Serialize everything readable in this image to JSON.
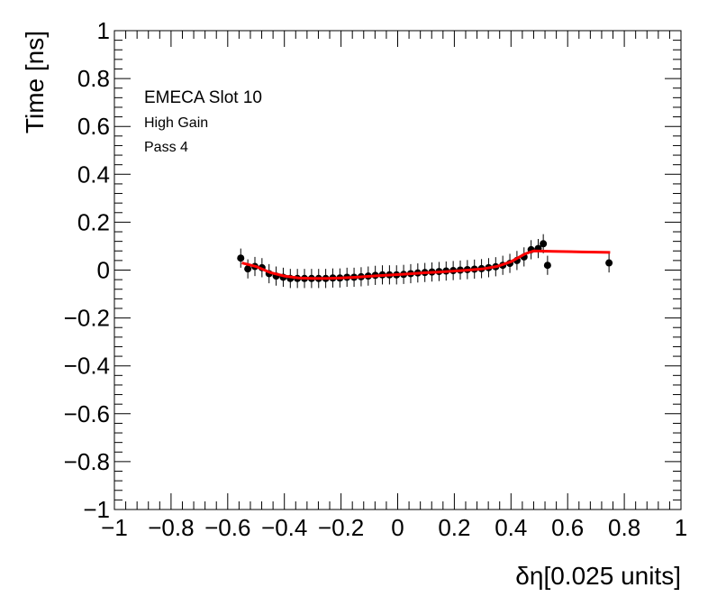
{
  "chart_data": {
    "type": "scatter",
    "xlabel": "δη[0.025 units]",
    "ylabel": "Time [ns]",
    "xlim": [
      -1,
      1
    ],
    "ylim": [
      -1,
      1
    ],
    "x_ticks": [
      "−1",
      "−0.8",
      "−0.6",
      "−0.4",
      "−0.2",
      "0",
      "0.2",
      "0.4",
      "0.6",
      "0.8",
      "1"
    ],
    "y_ticks": [
      "−1",
      "−0.8",
      "−0.6",
      "−0.4",
      "−0.2",
      "0",
      "0.2",
      "0.4",
      "0.6",
      "0.8",
      "1"
    ],
    "annotations": [
      "EMECA Slot 10",
      "High Gain",
      "Pass 4"
    ],
    "grid": false,
    "colors": {
      "points": "#000000",
      "fit": "#ff0000"
    },
    "series": [
      {
        "kind": "points-with-errors",
        "x": [
          -0.554,
          -0.529,
          -0.504,
          -0.479,
          -0.454,
          -0.429,
          -0.404,
          -0.379,
          -0.354,
          -0.329,
          -0.304,
          -0.279,
          -0.254,
          -0.229,
          -0.204,
          -0.179,
          -0.154,
          -0.129,
          -0.104,
          -0.079,
          -0.054,
          -0.029,
          -0.004,
          0.021,
          0.046,
          0.071,
          0.096,
          0.121,
          0.146,
          0.171,
          0.196,
          0.221,
          0.246,
          0.271,
          0.296,
          0.321,
          0.346,
          0.371,
          0.396,
          0.421,
          0.446,
          0.471,
          0.496,
          0.514,
          0.529,
          0.746
        ],
        "y": [
          0.05,
          0.005,
          0.015,
          0.01,
          -0.015,
          -0.025,
          -0.03,
          -0.035,
          -0.035,
          -0.035,
          -0.035,
          -0.035,
          -0.035,
          -0.033,
          -0.033,
          -0.03,
          -0.03,
          -0.028,
          -0.025,
          -0.022,
          -0.02,
          -0.02,
          -0.02,
          -0.018,
          -0.015,
          -0.012,
          -0.01,
          -0.008,
          -0.006,
          -0.004,
          -0.002,
          0.0,
          0.002,
          0.004,
          0.006,
          0.01,
          0.014,
          0.02,
          0.028,
          0.04,
          0.055,
          0.085,
          0.09,
          0.11,
          0.02,
          0.03
        ],
        "yerr": 0.04
      },
      {
        "kind": "fit-curve",
        "x": [
          -0.55,
          -0.5,
          -0.45,
          -0.4,
          -0.35,
          -0.3,
          -0.25,
          -0.2,
          -0.15,
          -0.1,
          -0.05,
          0.0,
          0.05,
          0.1,
          0.15,
          0.2,
          0.25,
          0.3,
          0.35,
          0.4,
          0.45,
          0.48,
          0.55,
          0.65,
          0.75
        ],
        "y": [
          0.03,
          0.015,
          -0.01,
          -0.025,
          -0.033,
          -0.035,
          -0.035,
          -0.033,
          -0.03,
          -0.026,
          -0.022,
          -0.019,
          -0.015,
          -0.011,
          -0.008,
          -0.004,
          0.0,
          0.005,
          0.015,
          0.035,
          0.068,
          0.08,
          0.078,
          0.076,
          0.074
        ]
      }
    ]
  }
}
